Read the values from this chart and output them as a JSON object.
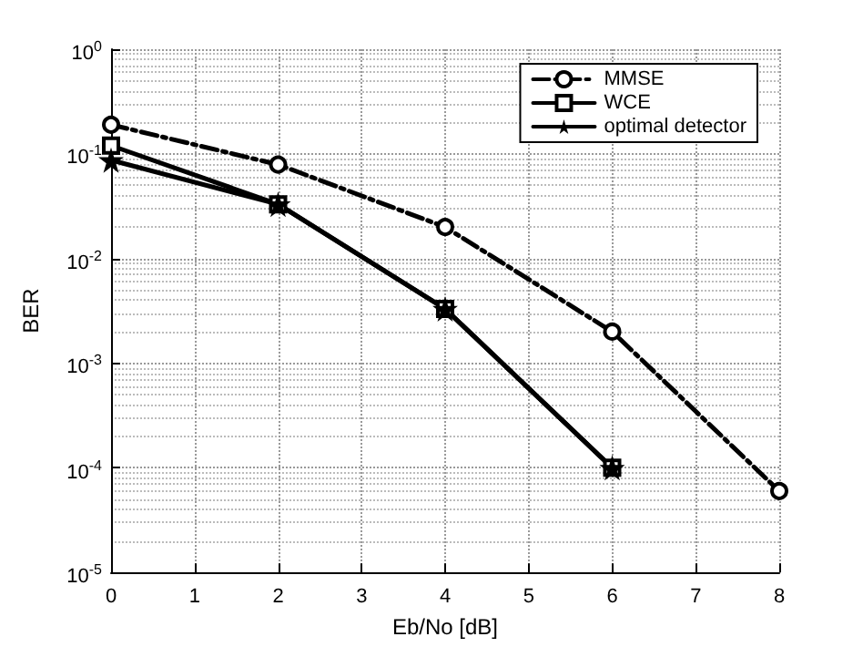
{
  "chart_data": {
    "type": "line",
    "xlabel": "Eb/No [dB]",
    "ylabel": "BER",
    "log": "y",
    "grid": true,
    "legend": "top right",
    "xlim": [
      0,
      8
    ],
    "xticks": [
      0,
      1,
      2,
      3,
      4,
      5,
      6,
      7,
      8
    ],
    "ylim": [
      1e-05,
      1
    ],
    "yticks": [
      {
        "value": 1e-05,
        "label": "10$^{-5}$"
      },
      {
        "value": 0.0001,
        "label": "10$^{-4}$"
      },
      {
        "value": 0.001,
        "label": "10$^{-3}$"
      },
      {
        "value": 0.01,
        "label": "10$^{-2}$"
      },
      {
        "value": 0.1,
        "label": "10$^{-1}$"
      },
      {
        "value": 1,
        "label": "10$^{0}$"
      }
    ],
    "x": [
      0,
      2,
      4,
      6,
      8
    ],
    "series": [
      {
        "name": "MMSE",
        "color": "#000000",
        "marker": "circle",
        "line_style": "dashed",
        "values": [
          0.19,
          0.079,
          0.02,
          0.002,
          6e-05
        ]
      },
      {
        "name": "WCE",
        "color": "#000000",
        "marker": "square",
        "line_style": "solid",
        "values": [
          0.12,
          0.033,
          0.0033,
          0.0001,
          null
        ]
      },
      {
        "name": "optimal detector",
        "color": "#000000",
        "marker": "star",
        "line_style": "solid",
        "values": [
          0.087,
          0.033,
          0.0033,
          0.0001,
          null
        ]
      }
    ]
  }
}
